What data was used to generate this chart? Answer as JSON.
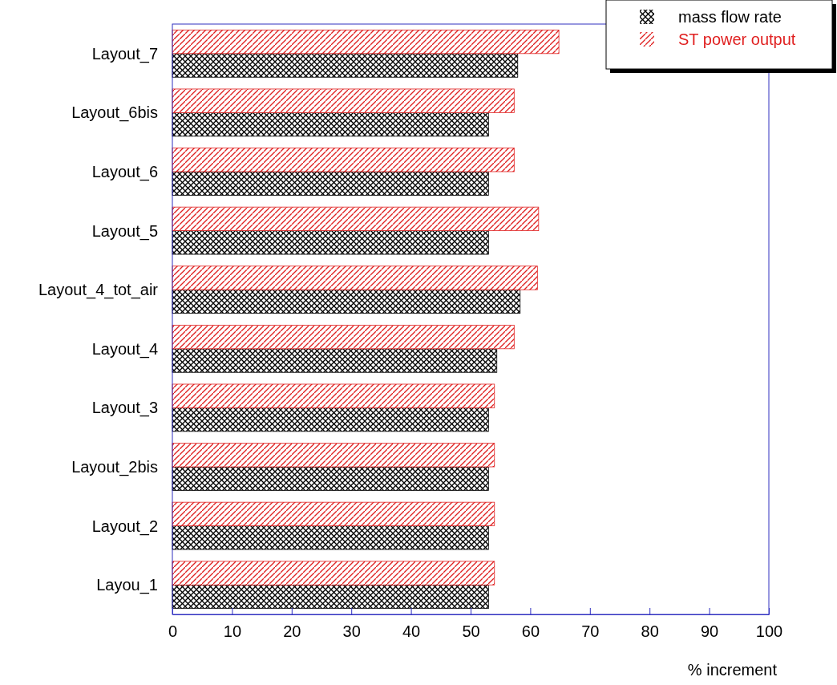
{
  "chart_data": {
    "type": "bar",
    "orientation": "horizontal",
    "xlabel": "% increment",
    "categories": [
      "Layout_7",
      "Layout_6bis",
      "Layout_6",
      "Layout_5",
      "Layout_4_tot_air",
      "Layout_4",
      "Layout_3",
      "Layout_2bis",
      "Layout_2",
      "Layou_1"
    ],
    "series": [
      {
        "name": "mass flow rate",
        "color": "#000000",
        "values": [
          57.9,
          53.0,
          53.0,
          53.0,
          58.3,
          54.4,
          53.0,
          53.0,
          53.0,
          53.0
        ]
      },
      {
        "name": "ST power output",
        "color": "#e02020",
        "values": [
          64.8,
          57.3,
          57.3,
          61.4,
          61.2,
          57.3,
          54.0,
          54.0,
          54.0,
          54.0
        ]
      }
    ],
    "xlim": [
      0,
      100
    ],
    "xticks": [
      0,
      10,
      20,
      30,
      40,
      50,
      60,
      70,
      80,
      90,
      100
    ],
    "grid": false,
    "legend": "top right"
  }
}
